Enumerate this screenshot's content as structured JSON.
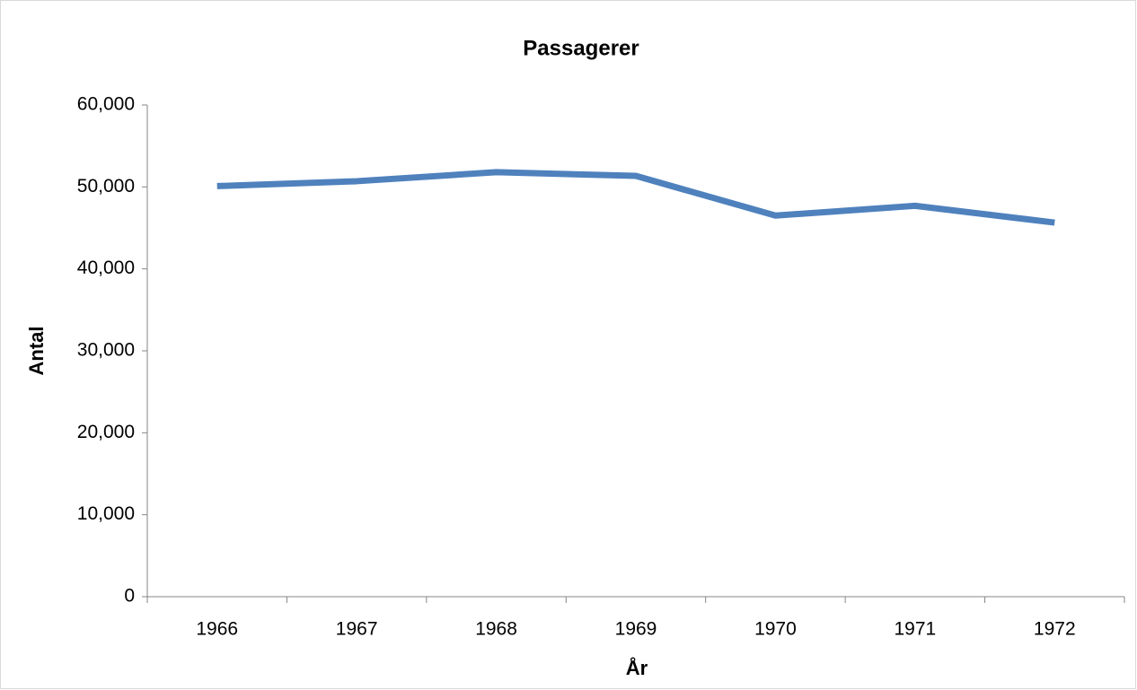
{
  "chart_data": {
    "type": "line",
    "title": "Passagerer",
    "x_label": "År",
    "y_label": "Antal",
    "categories": [
      "1966",
      "1967",
      "1968",
      "1969",
      "1970",
      "1971",
      "1972"
    ],
    "series": [
      {
        "name": "Passagerer",
        "color": "#4f81bd",
        "values": [
          50100,
          50700,
          51800,
          51350,
          46500,
          47700,
          45650
        ]
      }
    ],
    "ylim": [
      0,
      60000
    ],
    "yticks": [
      0,
      {
        "value": 10000,
        "label": "10,000"
      },
      {
        "value": 20000,
        "label": "20,000"
      },
      {
        "value": 30000,
        "label": "30,000"
      },
      {
        "value": 40000,
        "label": "40,000"
      },
      {
        "value": 50000,
        "label": "50,000"
      },
      {
        "value": 60000,
        "label": "60,000"
      }
    ],
    "grid": false,
    "legend": false
  }
}
